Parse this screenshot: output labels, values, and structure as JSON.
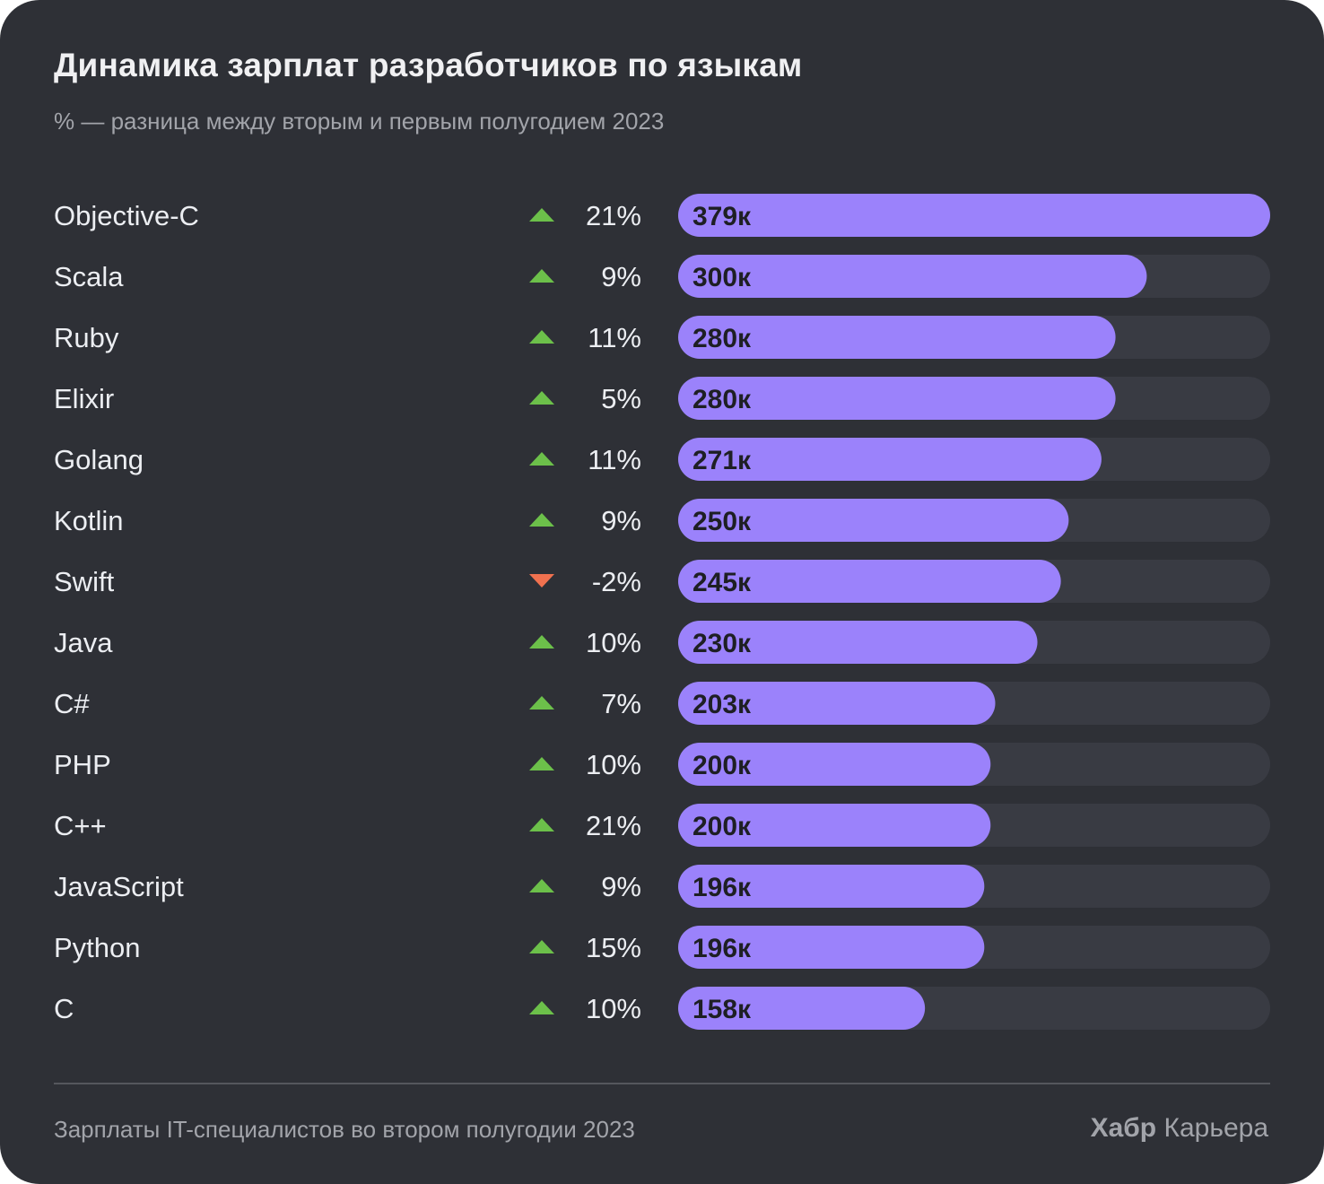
{
  "title": "Динамика зарплат разработчиков по языкам",
  "subtitle": "% — разница между вторым и первым полугодием 2023",
  "footer": {
    "note": "Зарплаты IT-специалистов во втором полугодии 2023",
    "brand_bold": "Хабр",
    "brand_regular": "Карьера"
  },
  "colors": {
    "background": "#2e3036",
    "bar": "#9b82fb",
    "track": "#393b43",
    "up": "#6cc04a",
    "down": "#f0714f"
  },
  "chart_data": {
    "type": "bar",
    "orientation": "horizontal",
    "categories": [
      "Objective-C",
      "Scala",
      "Ruby",
      "Elixir",
      "Golang",
      "Kotlin",
      "Swift",
      "Java",
      "C#",
      "PHP",
      "C++",
      "JavaScript",
      "Python",
      "C"
    ],
    "values": [
      379,
      300,
      280,
      280,
      271,
      250,
      245,
      230,
      203,
      200,
      200,
      196,
      196,
      158
    ],
    "value_labels": [
      "379к",
      "300к",
      "280к",
      "280к",
      "271к",
      "250к",
      "245к",
      "230к",
      "203к",
      "200к",
      "200к",
      "196к",
      "196к",
      "158к"
    ],
    "change_percent": [
      21,
      9,
      11,
      5,
      11,
      9,
      -2,
      10,
      7,
      10,
      21,
      9,
      15,
      10
    ],
    "change_labels": [
      "21%",
      "9%",
      "11%",
      "5%",
      "11%",
      "9%",
      "-2%",
      "10%",
      "7%",
      "10%",
      "21%",
      "9%",
      "15%",
      "10%"
    ],
    "change_direction": [
      "up",
      "up",
      "up",
      "up",
      "up",
      "up",
      "down",
      "up",
      "up",
      "up",
      "up",
      "up",
      "up",
      "up"
    ],
    "xlim": [
      0,
      379
    ]
  }
}
